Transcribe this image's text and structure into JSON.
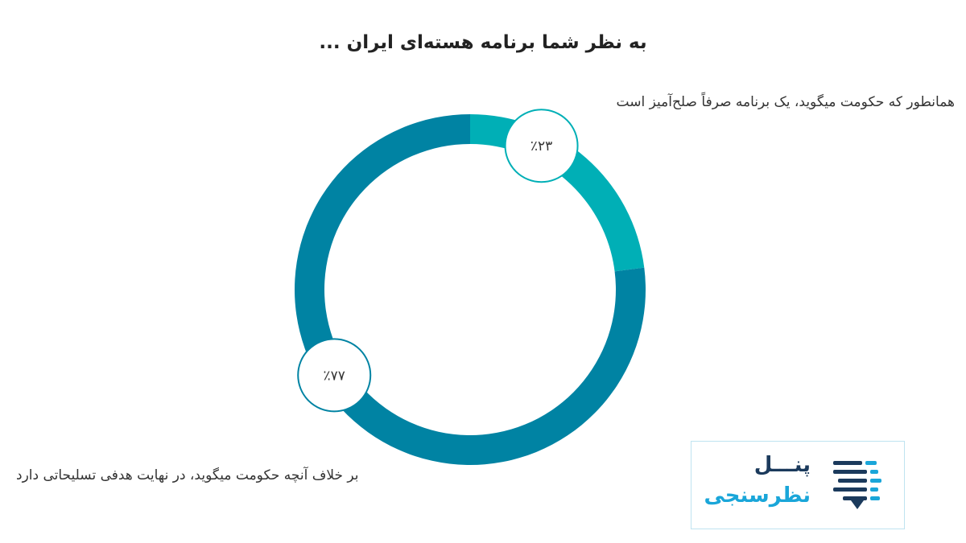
{
  "chart_data": {
    "type": "pie",
    "title": "به نظر شما برنامه هسته‌ای ایران ...",
    "categories": [
      "همانطور که حکومت میگوید، یک برنامه صرفاً صلح‌آمیز است",
      "بر خلاف آنچه حکومت میگوید، در نهایت هدفی تسلیحاتی دارد"
    ],
    "values": [
      23,
      77
    ],
    "value_labels": [
      "٪۲۳",
      "٪۷۷"
    ],
    "colors": [
      "#00afb6",
      "#0083a3"
    ],
    "donut": true
  },
  "logo": {
    "line1": "پنـــل",
    "line2": "نظرسنجی",
    "colors": [
      "#1b3a5c",
      "#1aa6d9"
    ]
  }
}
